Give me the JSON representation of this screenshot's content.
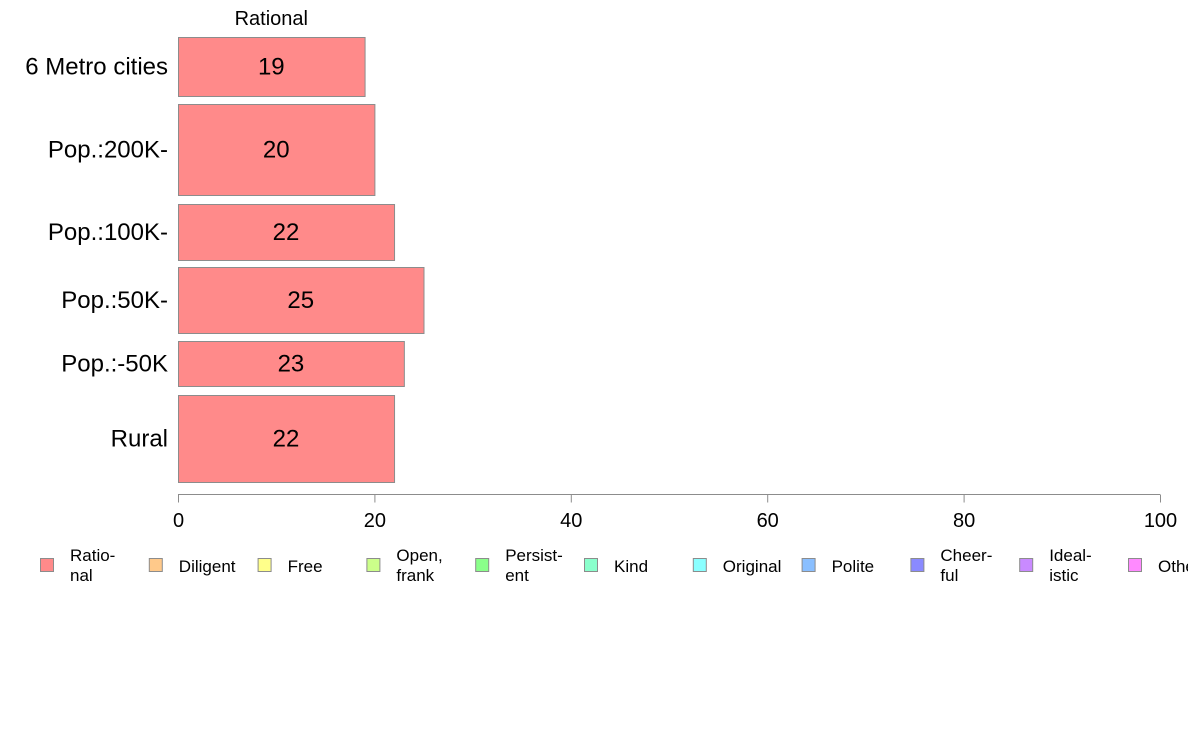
{
  "chart_data": {
    "type": "bar",
    "orientation": "horizontal",
    "stacked": true,
    "categories": [
      "6 Metro cities",
      "Pop.:200K-",
      "Pop.:100K-",
      "Pop.:50K-",
      "Pop.:-50K",
      "Rural"
    ],
    "series": [
      {
        "name": "Rational",
        "values": [
          19,
          20,
          22,
          25,
          23,
          22
        ],
        "color": "#ff8a8a"
      }
    ],
    "segment_labels": [
      "Rational"
    ],
    "xlim": [
      0,
      100
    ],
    "xticks": [
      "0",
      "20",
      "40",
      "60",
      "80",
      "100"
    ],
    "xlabel": "",
    "ylabel": "",
    "title": "",
    "grid": false,
    "legend_position": "bottom",
    "legend": [
      {
        "label": [
          "Ratio-",
          "nal"
        ],
        "color": "#ff8a8a"
      },
      {
        "label": [
          "Diligent"
        ],
        "color": "#ffc98a"
      },
      {
        "label": [
          "Free"
        ],
        "color": "#ffff8a"
      },
      {
        "label": [
          "Open,",
          "frank"
        ],
        "color": "#ccff8a"
      },
      {
        "label": [
          "Persist-",
          "ent"
        ],
        "color": "#8aff8a"
      },
      {
        "label": [
          "Kind"
        ],
        "color": "#8affcc"
      },
      {
        "label": [
          "Original"
        ],
        "color": "#8affff"
      },
      {
        "label": [
          "Polite"
        ],
        "color": "#8abfff"
      },
      {
        "label": [
          "Cheer-",
          "ful"
        ],
        "color": "#8a8aff"
      },
      {
        "label": [
          "Ideal-",
          "istic"
        ],
        "color": "#c98aff"
      },
      {
        "label": [
          "Others"
        ],
        "color": "#ff8aff"
      }
    ]
  }
}
